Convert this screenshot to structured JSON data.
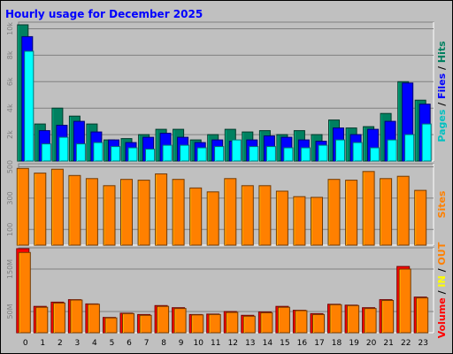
{
  "chart_data": {
    "title": "Hourly usage for December 2025",
    "type": "bar",
    "categories": [
      "0",
      "1",
      "2",
      "3",
      "4",
      "5",
      "6",
      "7",
      "8",
      "9",
      "10",
      "11",
      "12",
      "13",
      "14",
      "15",
      "16",
      "17",
      "18",
      "19",
      "20",
      "21",
      "22",
      "23"
    ],
    "panels": [
      {
        "id": "top",
        "yticks": [
          "2k",
          "4k",
          "6k",
          "8k",
          "10k"
        ],
        "ylim": [
          0,
          10500
        ],
        "tick_values": [
          2000,
          4000,
          6000,
          8000,
          10000
        ],
        "side_label": [
          {
            "text": "Pages",
            "color": "#00c0c0"
          },
          {
            "text": " / ",
            "color": "#000000"
          },
          {
            "text": "Files",
            "color": "#0000ff"
          },
          {
            "text": " / ",
            "color": "#000000"
          },
          {
            "text": "Hits",
            "color": "#008060"
          }
        ],
        "series": [
          {
            "name": "Hits",
            "color": "#008060",
            "values": [
              10300,
              2800,
              4000,
              3400,
              2800,
              1600,
              1700,
              2000,
              2400,
              2400,
              1600,
              2000,
              2400,
              2200,
              2300,
              2000,
              2300,
              2000,
              3100,
              2500,
              2600,
              3600,
              6000,
              4600
            ]
          },
          {
            "name": "Files",
            "color": "#0000ff",
            "values": [
              9400,
              2300,
              2700,
              3000,
              2200,
              1600,
              1400,
              1800,
              2100,
              1800,
              1400,
              1600,
              1500,
              1600,
              1900,
              1800,
              1600,
              1500,
              2500,
              2000,
              2400,
              3000,
              5900,
              4300
            ]
          },
          {
            "name": "Pages",
            "color": "#00ffff",
            "values": [
              8300,
              1300,
              1800,
              1300,
              1400,
              1100,
              1000,
              900,
              1200,
              1200,
              1000,
              1100,
              1600,
              1100,
              1100,
              1000,
              1000,
              1200,
              1600,
              1400,
              1000,
              1600,
              2000,
              2800
            ]
          }
        ]
      },
      {
        "id": "middle",
        "yticks": [
          "100",
          "300",
          "500"
        ],
        "ylim": [
          0,
          520
        ],
        "tick_values": [
          100,
          300,
          500
        ],
        "side_label": [
          {
            "text": "Sites",
            "color": "#ff8000"
          }
        ],
        "series": [
          {
            "name": "Sites",
            "color": "#ff8000",
            "values": [
              490,
              460,
              485,
              445,
              425,
              380,
              420,
              415,
              455,
              420,
              365,
              340,
              425,
              380,
              380,
              345,
              310,
              305,
              420,
              415,
              470,
              425,
              440,
              350
            ]
          }
        ]
      },
      {
        "id": "bottom",
        "yticks": [
          "50M",
          "150M"
        ],
        "ylim": [
          0,
          200
        ],
        "tick_values": [
          50,
          150
        ],
        "side_label": [
          {
            "text": "Volume",
            "color": "#ff0000"
          },
          {
            "text": " / ",
            "color": "#000000"
          },
          {
            "text": "IN",
            "color": "#ffff00"
          },
          {
            "text": " / ",
            "color": "#000000"
          },
          {
            "text": "OUT",
            "color": "#ff8000"
          }
        ],
        "series": [
          {
            "name": "Volume",
            "color": "#ff0000",
            "values": [
              198,
              62,
              72,
              78,
              68,
              36,
              46,
              43,
              64,
              59,
              43,
              44,
              50,
              41,
              49,
              62,
              53,
              45,
              67,
              65,
              59,
              78,
              156,
              84
            ]
          },
          {
            "name": "OUT",
            "color": "#ff8000",
            "values": [
              189,
              60,
              70,
              77,
              67,
              35,
              45,
              41,
              62,
              57,
              42,
              43,
              48,
              39,
              47,
              60,
              52,
              43,
              66,
              64,
              57,
              76,
              150,
              82
            ]
          }
        ]
      }
    ],
    "grid": true
  },
  "colors": {
    "background": "#c0c0c0",
    "plot_background": "#c0c0c0",
    "grid": "#808080",
    "title": "#0000ff"
  }
}
